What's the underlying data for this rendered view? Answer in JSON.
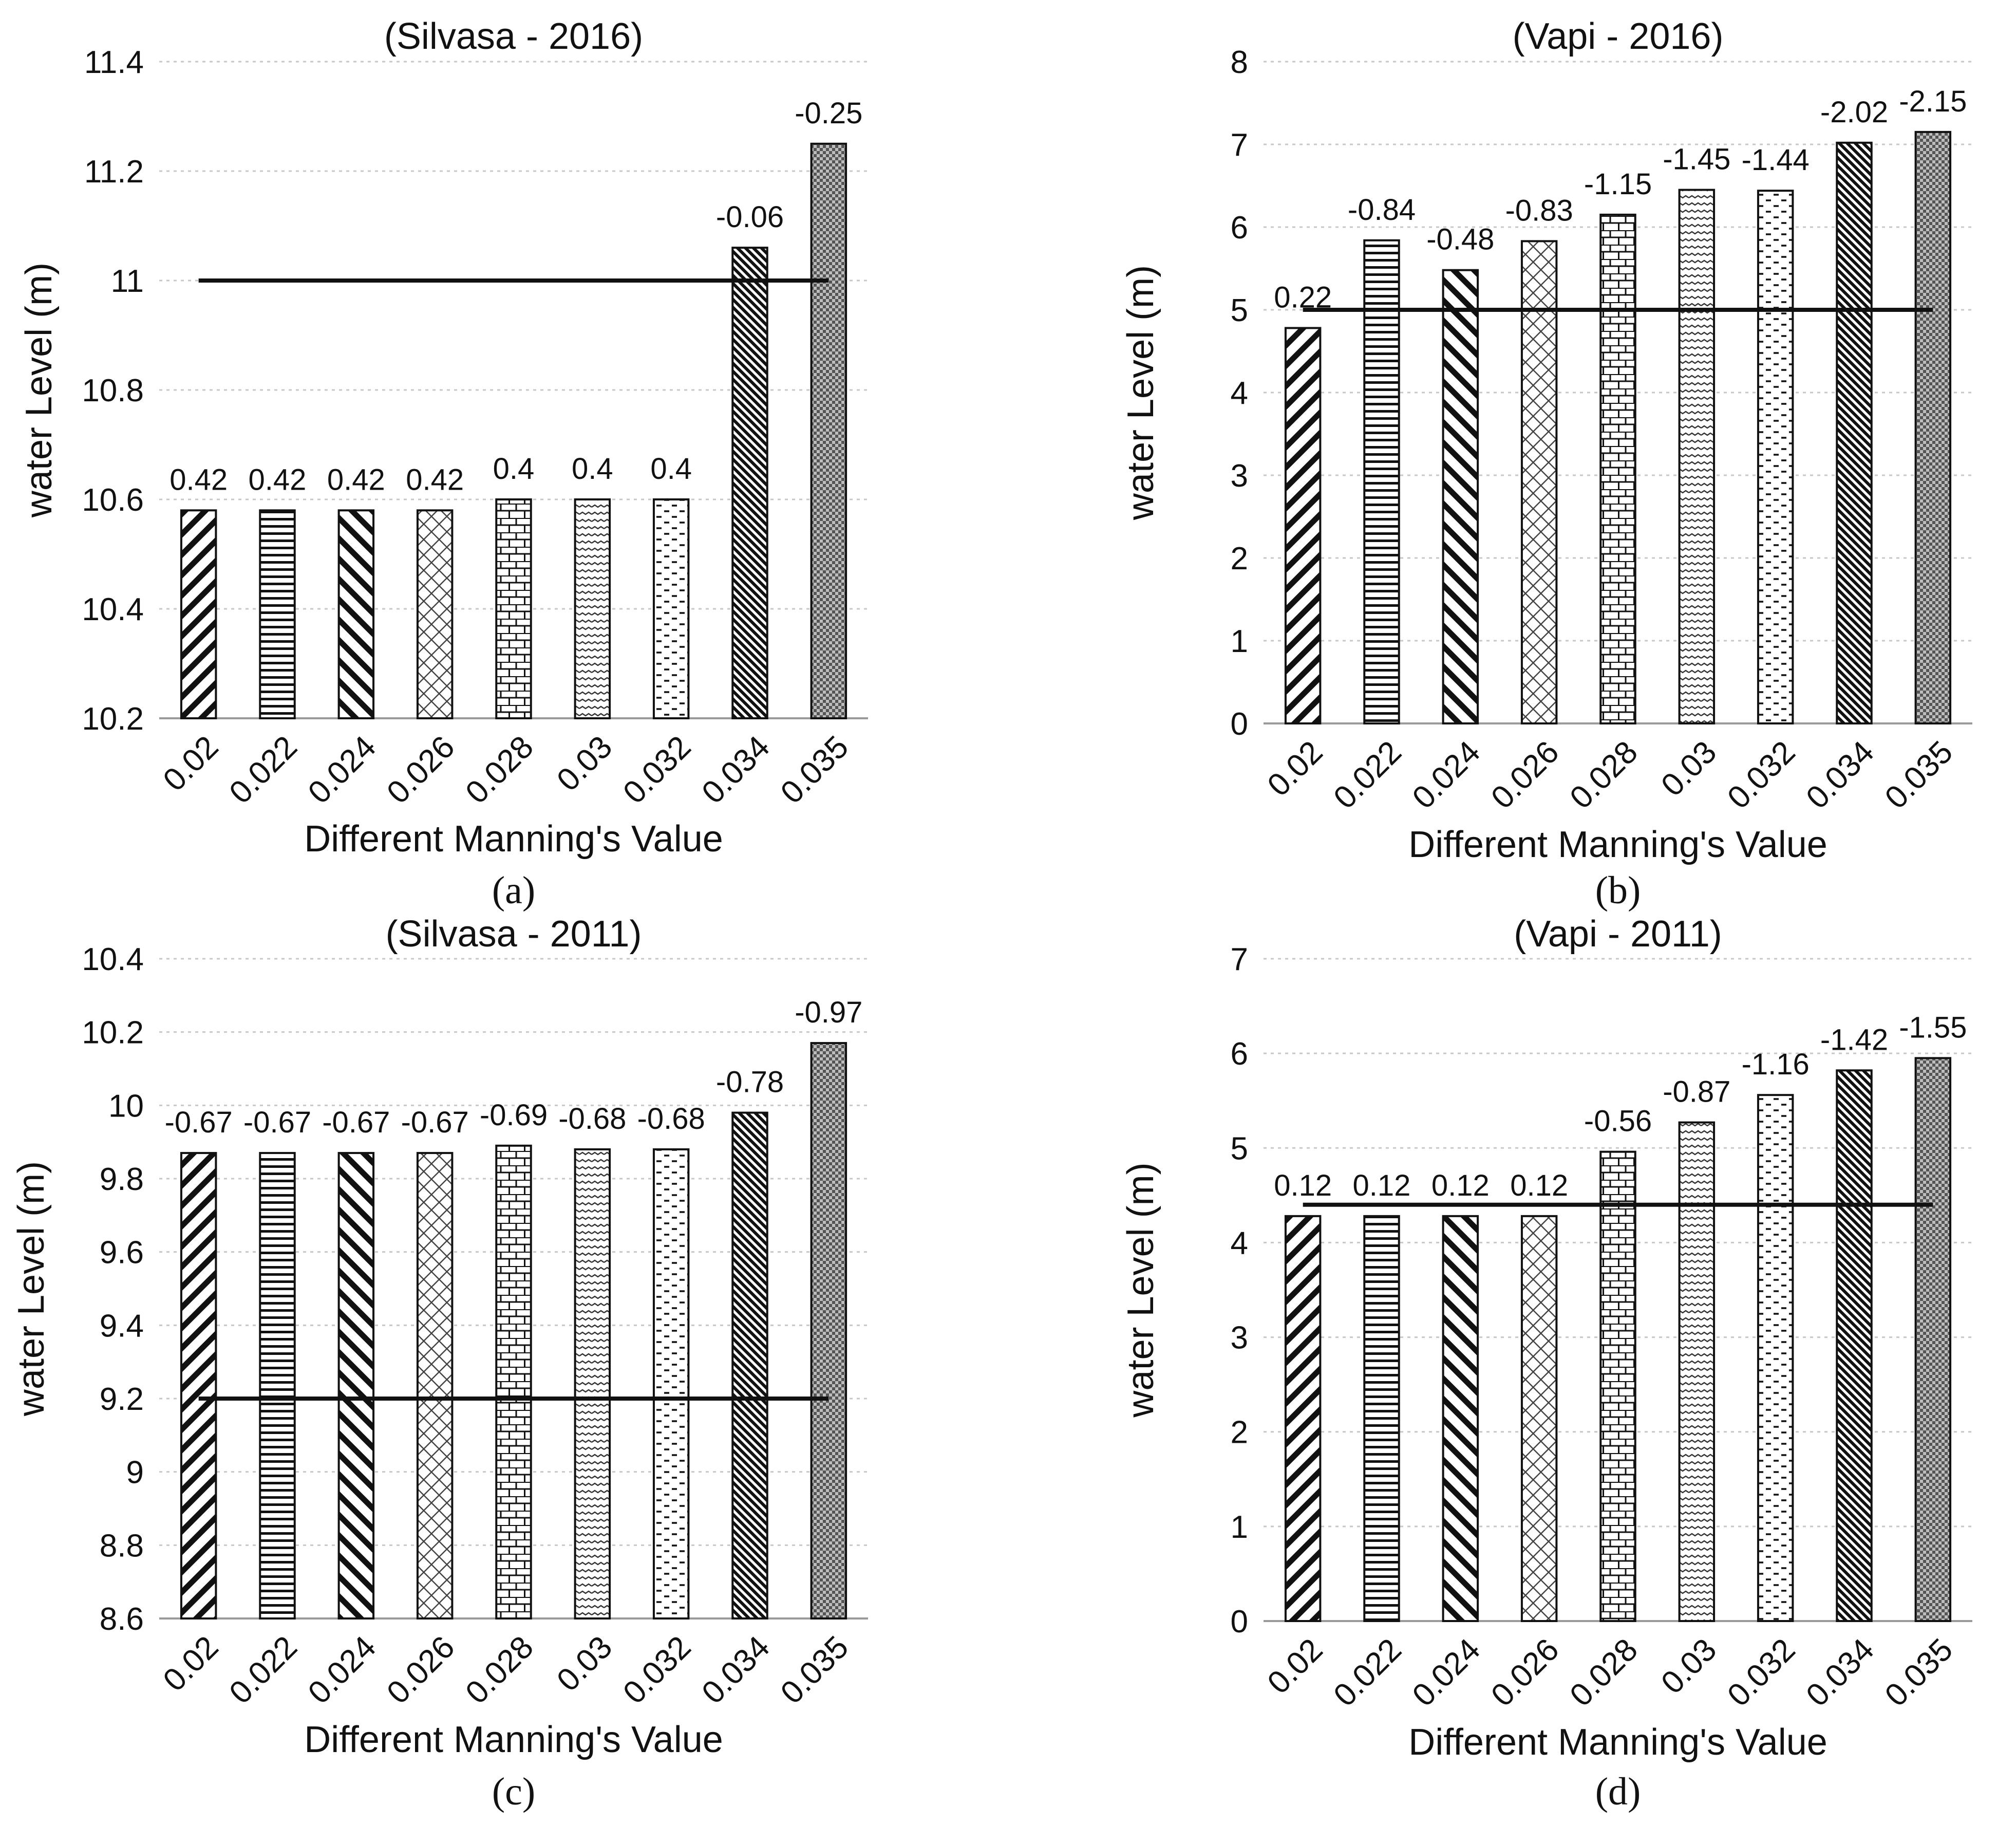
{
  "figure": {
    "panels": [
      "(a)",
      "(b)",
      "(c)",
      "(d)"
    ]
  },
  "chart_data": [
    {
      "type": "bar",
      "title": "(Silvasa - 2016)",
      "xlabel": "Different Manning's Value",
      "ylabel": "water Level (m)",
      "categories": [
        "0.02",
        "0.022",
        "0.024",
        "0.026",
        "0.028",
        "0.03",
        "0.032",
        "0.034",
        "0.035"
      ],
      "values": [
        10.58,
        10.58,
        10.58,
        10.58,
        10.6,
        10.6,
        10.6,
        11.06,
        11.25
      ],
      "data_labels": [
        "0.42",
        "0.42",
        "0.42",
        "0.42",
        "0.4",
        "0.4",
        "0.4",
        "-0.06",
        "-0.25"
      ],
      "ylim": [
        10.2,
        11.4
      ],
      "yticks": [
        "10.2",
        "10.4",
        "10.6",
        "10.8",
        "11",
        "11.2",
        "11.4"
      ],
      "observed_level": 11.0,
      "grid": true,
      "panel_label": "(a)"
    },
    {
      "type": "bar",
      "title": "(Vapi - 2016)",
      "xlabel": "Different Manning's Value",
      "ylabel": "water Level (m)",
      "categories": [
        "0.02",
        "0.022",
        "0.024",
        "0.026",
        "0.028",
        "0.03",
        "0.032",
        "0.034",
        "0.035"
      ],
      "values": [
        4.78,
        5.84,
        5.48,
        5.83,
        6.15,
        6.45,
        6.44,
        7.02,
        7.15
      ],
      "data_labels": [
        "0.22",
        "-0.84",
        "-0.48",
        "-0.83",
        "-1.15",
        "-1.45",
        "-1.44",
        "-2.02",
        "-2.15"
      ],
      "ylim": [
        0,
        8
      ],
      "yticks": [
        "0",
        "1",
        "2",
        "3",
        "4",
        "5",
        "6",
        "7",
        "8"
      ],
      "observed_level": 5.0,
      "grid": true,
      "panel_label": "(b)"
    },
    {
      "type": "bar",
      "title": "(Silvasa - 2011)",
      "xlabel": "Different Manning's Value",
      "ylabel": "water Level (m)",
      "categories": [
        "0.02",
        "0.022",
        "0.024",
        "0.026",
        "0.028",
        "0.03",
        "0.032",
        "0.034",
        "0.035"
      ],
      "values": [
        9.87,
        9.87,
        9.87,
        9.87,
        9.89,
        9.88,
        9.88,
        9.98,
        10.17
      ],
      "data_labels": [
        "-0.67",
        "-0.67",
        "-0.67",
        "-0.67",
        "-0.69",
        "-0.68",
        "-0.68",
        "-0.78",
        "-0.97"
      ],
      "ylim": [
        8.6,
        10.4
      ],
      "yticks": [
        "8.6",
        "8.8",
        "9",
        "9.2",
        "9.4",
        "9.6",
        "9.8",
        "10",
        "10.2",
        "10.4"
      ],
      "observed_level": 9.2,
      "grid": true,
      "panel_label": "(c)"
    },
    {
      "type": "bar",
      "title": "(Vapi - 2011)",
      "xlabel": "Different Manning's Value",
      "ylabel": "water Level (m)",
      "categories": [
        "0.02",
        "0.022",
        "0.024",
        "0.026",
        "0.028",
        "0.03",
        "0.032",
        "0.034",
        "0.035"
      ],
      "values": [
        4.28,
        4.28,
        4.28,
        4.28,
        4.96,
        5.27,
        5.56,
        5.82,
        5.95
      ],
      "data_labels": [
        "0.12",
        "0.12",
        "0.12",
        "0.12",
        "-0.56",
        "-0.87",
        "-1.16",
        "-1.42",
        "-1.55"
      ],
      "ylim": [
        0,
        7
      ],
      "yticks": [
        "0",
        "1",
        "2",
        "3",
        "4",
        "5",
        "6",
        "7"
      ],
      "observed_level": 4.4,
      "grid": true,
      "panel_label": "(d)"
    }
  ]
}
